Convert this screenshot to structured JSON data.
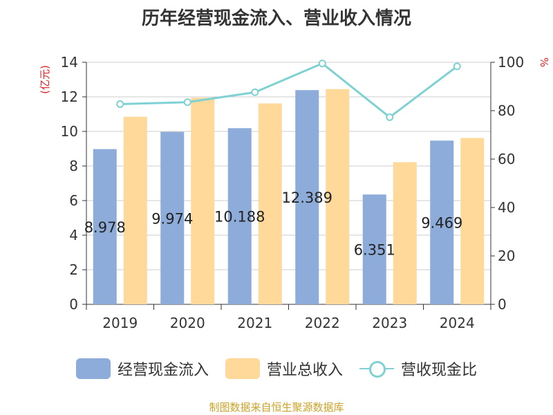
{
  "title": "历年经营现金流入、营业收入情况",
  "source": "制图数据来自恒生聚源数据库",
  "chart_data": {
    "type": "bar",
    "categories": [
      "2019",
      "2020",
      "2021",
      "2022",
      "2023",
      "2024"
    ],
    "series": [
      {
        "name": "经营现金流入",
        "type": "bar",
        "axis": "left",
        "color": "#8eacd9",
        "values": [
          8.978,
          9.974,
          10.188,
          12.389,
          6.351,
          9.469
        ],
        "labels": [
          "8.978",
          "9.974",
          "10.188",
          "12.389",
          "6.351",
          "9.469"
        ]
      },
      {
        "name": "营业总收入",
        "type": "bar",
        "axis": "left",
        "color": "#ffd99a",
        "values": [
          10.85,
          11.95,
          11.62,
          12.45,
          8.22,
          9.62
        ]
      },
      {
        "name": "营收现金比",
        "type": "line",
        "axis": "right",
        "color": "#7fd1d3",
        "values": [
          82.7,
          83.5,
          87.6,
          99.5,
          77.3,
          98.3
        ]
      }
    ],
    "ylabel_left": "(亿元)",
    "ylabel_right": "%",
    "ylim_left": [
      0,
      14
    ],
    "yticks_left": [
      "0",
      "2",
      "4",
      "6",
      "8",
      "10",
      "12",
      "14"
    ],
    "ylim_right": [
      0,
      100
    ],
    "yticks_right": [
      "0",
      "20",
      "40",
      "60",
      "80",
      "100"
    ],
    "grid": true,
    "legend_position": "bottom"
  }
}
